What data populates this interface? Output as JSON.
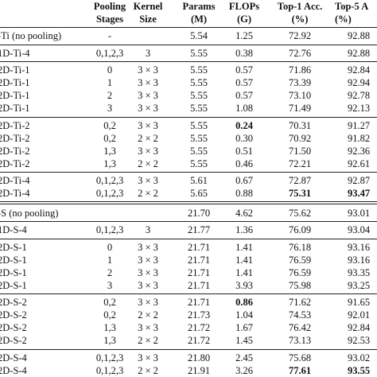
{
  "table": {
    "header": [
      [
        null,
        null
      ],
      [
        "Pooling",
        "Stages"
      ],
      [
        "Kernel",
        "Size"
      ],
      [
        "Params",
        "(M)"
      ],
      [
        "FLOPs",
        "(G)"
      ],
      [
        "Top-1 Acc.",
        "(%)"
      ],
      [
        "Top-5 A",
        "(%)"
      ]
    ],
    "blocks": [
      {
        "groups": [
          {
            "rows": [
              {
                "cells": [
                  "-Ti (no pooling)",
                  "-",
                  null,
                  "5.54",
                  "1.25",
                  "72.92",
                  "92.88"
                ]
              }
            ]
          },
          {
            "rows": [
              {
                "cells": [
                  "1D-Ti-4",
                  "0,1,2,3",
                  "3",
                  "5.55",
                  "0.38",
                  "72.76",
                  "92.88"
                ]
              }
            ]
          },
          {
            "rows": [
              {
                "cells": [
                  "2D-Ti-1",
                  "0",
                  "3 × 3",
                  "5.55",
                  "0.57",
                  "71.86",
                  "92.84"
                ]
              },
              {
                "cells": [
                  "2D-Ti-1",
                  "1",
                  "3 × 3",
                  "5.55",
                  "0.57",
                  "73.39",
                  "92.94"
                ]
              },
              {
                "cells": [
                  "2D-Ti-1",
                  "2",
                  "3 × 3",
                  "5.55",
                  "0.57",
                  "73.10",
                  "92.78"
                ]
              },
              {
                "cells": [
                  "2D-Ti-1",
                  "3",
                  "3 × 3",
                  "5.55",
                  "1.08",
                  "71.49",
                  "92.13"
                ]
              }
            ]
          },
          {
            "rows": [
              {
                "cells": [
                  "2D-Ti-2",
                  "0,2",
                  "3 × 3",
                  "5.55",
                  "0.24",
                  "70.31",
                  "91.27"
                ],
                "bold": [
                  4
                ]
              },
              {
                "cells": [
                  "2D-Ti-2",
                  "0,2",
                  "2 × 2",
                  "5.55",
                  "0.30",
                  "70.92",
                  "91.82"
                ]
              },
              {
                "cells": [
                  "2D-Ti-2",
                  "1,3",
                  "3 × 3",
                  "5.55",
                  "0.51",
                  "71.50",
                  "92.36"
                ]
              },
              {
                "cells": [
                  "2D-Ti-2",
                  "1,3",
                  "2 × 2",
                  "5.55",
                  "0.46",
                  "72.21",
                  "92.61"
                ]
              }
            ]
          },
          {
            "rows": [
              {
                "cells": [
                  "2D-Ti-4",
                  "0,1,2,3",
                  "3 × 3",
                  "5.61",
                  "0.67",
                  "72.87",
                  "92.87"
                ]
              },
              {
                "cells": [
                  "2D-Ti-4",
                  "0,1,2,3",
                  "2 × 2",
                  "5.65",
                  "0.88",
                  "75.31",
                  "93.47"
                ],
                "bold": [
                  5,
                  6
                ]
              }
            ]
          }
        ]
      },
      {
        "groups": [
          {
            "rows": [
              {
                "cells": [
                  "-S (no pooling)",
                  null,
                  null,
                  "21.70",
                  "4.62",
                  "75.62",
                  "93.01"
                ]
              }
            ]
          },
          {
            "rows": [
              {
                "cells": [
                  "1D-S-4",
                  "0,1,2,3",
                  "3",
                  "21.77",
                  "1.36",
                  "76.09",
                  "93.04"
                ]
              }
            ]
          },
          {
            "rows": [
              {
                "cells": [
                  "2D-S-1",
                  "0",
                  "3 × 3",
                  "21.71",
                  "1.41",
                  "76.18",
                  "93.16"
                ]
              },
              {
                "cells": [
                  "2D-S-1",
                  "1",
                  "3 × 3",
                  "21.71",
                  "1.41",
                  "76.59",
                  "93.16"
                ]
              },
              {
                "cells": [
                  "2D-S-1",
                  "2",
                  "3 × 3",
                  "21.71",
                  "1.41",
                  "76.59",
                  "93.35"
                ]
              },
              {
                "cells": [
                  "2D-S-1",
                  "3",
                  "3 × 3",
                  "21.71",
                  "3.93",
                  "75.98",
                  "93.25"
                ]
              }
            ]
          },
          {
            "rows": [
              {
                "cells": [
                  "2D-S-2",
                  "0,2",
                  "3 × 3",
                  "21.71",
                  "0.86",
                  "71.62",
                  "91.65"
                ],
                "bold": [
                  4
                ]
              },
              {
                "cells": [
                  "2D-S-2",
                  "0,2",
                  "2 × 2",
                  "21.73",
                  "1.04",
                  "74.53",
                  "92.01"
                ]
              },
              {
                "cells": [
                  "2D-S-2",
                  "1,3",
                  "3 × 3",
                  "21.72",
                  "1.67",
                  "76.42",
                  "92.84"
                ]
              },
              {
                "cells": [
                  "2D-S-2",
                  "1,3",
                  "2 × 2",
                  "21.72",
                  "1.45",
                  "73.13",
                  "92.53"
                ]
              }
            ]
          },
          {
            "rows": [
              {
                "cells": [
                  "2D-S-4",
                  "0,1,2,3",
                  "3 × 3",
                  "21.80",
                  "2.45",
                  "75.68",
                  "93.02"
                ]
              },
              {
                "cells": [
                  "2D-S-4",
                  "0,1,2,3",
                  "2 × 2",
                  "21.91",
                  "3.26",
                  "77.61",
                  "93.55"
                ],
                "bold": [
                  5,
                  6
                ]
              }
            ]
          }
        ]
      }
    ]
  }
}
